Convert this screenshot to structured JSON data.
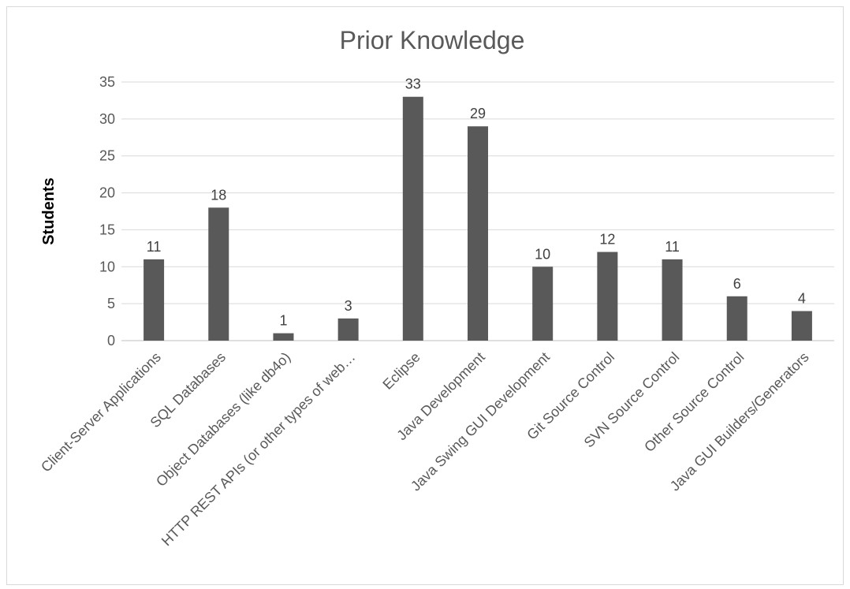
{
  "chart_data": {
    "type": "bar",
    "title": "Prior Knowledge",
    "xlabel": "",
    "ylabel": "Students",
    "ylim": [
      0,
      35
    ],
    "yticks": [
      0,
      5,
      10,
      15,
      20,
      25,
      30,
      35
    ],
    "grid": true,
    "legend": "none",
    "bar_color": "#595959",
    "categories": [
      "Client-Server Applications",
      "SQL Databases",
      "Object Databases (like db4o)",
      "HTTP REST APIs (or other types of web…",
      "Eclipse",
      "Java Development",
      "Java Swing GUI Development",
      "Git Source Control",
      "SVN Source Control",
      "Other Source Control",
      "Java GUI Builders/Generators"
    ],
    "values": [
      11,
      18,
      1,
      3,
      33,
      29,
      10,
      12,
      11,
      6,
      4
    ]
  }
}
